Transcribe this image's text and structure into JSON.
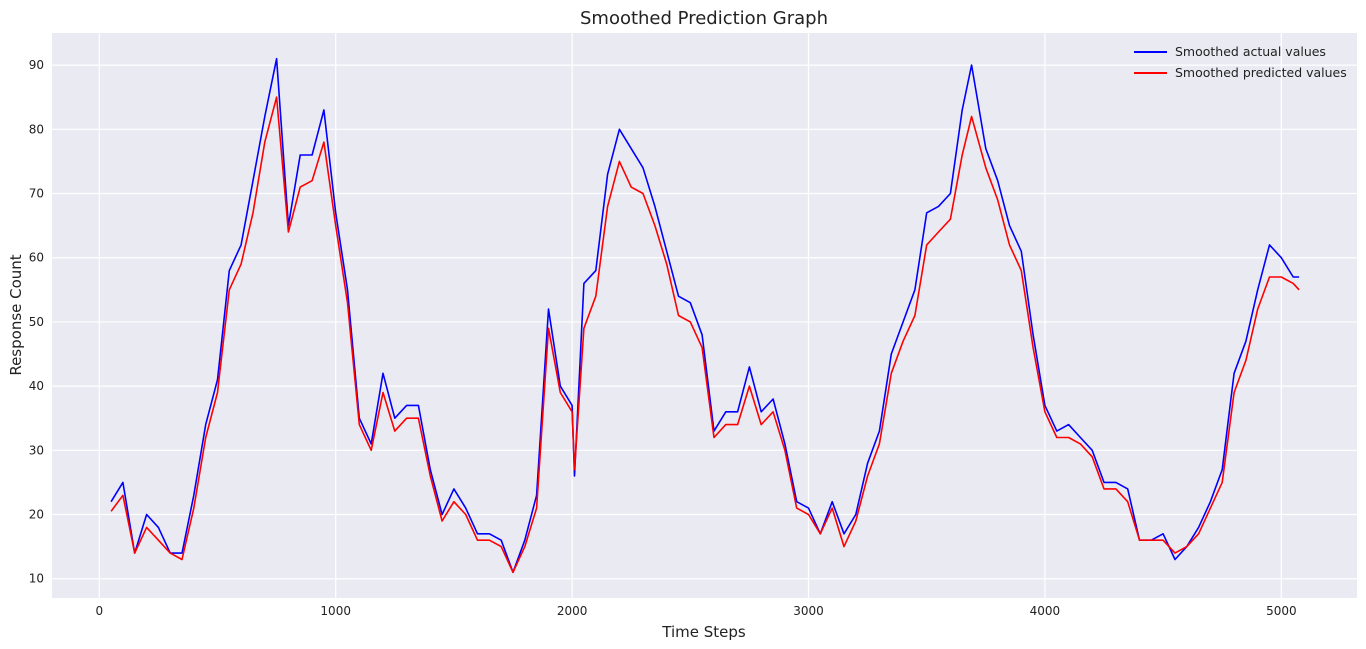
{
  "chart_data": {
    "type": "line",
    "title": "Smoothed Prediction Graph",
    "xlabel": "Time Steps",
    "ylabel": "Response Count",
    "xlim": [
      -200,
      5320
    ],
    "ylim": [
      7,
      95
    ],
    "xticks": [
      0,
      1000,
      2000,
      3000,
      4000,
      5000
    ],
    "yticks": [
      10,
      20,
      30,
      40,
      50,
      60,
      70,
      80,
      90
    ],
    "grid": true,
    "legend_position": "top-right",
    "series": [
      {
        "name": "Smoothed actual values",
        "color": "#0000ff",
        "x": [
          50,
          100,
          150,
          200,
          250,
          300,
          350,
          400,
          450,
          500,
          550,
          600,
          650,
          700,
          750,
          800,
          850,
          900,
          950,
          1000,
          1050,
          1100,
          1150,
          1200,
          1250,
          1300,
          1350,
          1400,
          1450,
          1500,
          1550,
          1600,
          1650,
          1700,
          1750,
          1800,
          1850,
          1900,
          1950,
          2000,
          2010,
          2050,
          2100,
          2150,
          2200,
          2250,
          2300,
          2350,
          2400,
          2450,
          2500,
          2550,
          2600,
          2650,
          2700,
          2750,
          2800,
          2850,
          2900,
          2950,
          3000,
          3050,
          3100,
          3150,
          3200,
          3250,
          3300,
          3350,
          3400,
          3450,
          3500,
          3550,
          3600,
          3650,
          3690,
          3750,
          3800,
          3850,
          3900,
          3950,
          4000,
          4050,
          4100,
          4150,
          4200,
          4250,
          4300,
          4350,
          4400,
          4450,
          4500,
          4550,
          4600,
          4650,
          4700,
          4750,
          4800,
          4850,
          4900,
          4950,
          5000,
          5050,
          5075
        ],
        "values": [
          22,
          25,
          14,
          20,
          18,
          14,
          14,
          23,
          34,
          41,
          58,
          62,
          72,
          82,
          91,
          65,
          76,
          76,
          83,
          67,
          55,
          35,
          31,
          42,
          35,
          37,
          37,
          27,
          20,
          24,
          21,
          17,
          17,
          16,
          11,
          16,
          23,
          52,
          40,
          37,
          26,
          56,
          58,
          73,
          80,
          77,
          74,
          68,
          61,
          54,
          53,
          48,
          33,
          36,
          36,
          43,
          36,
          38,
          31,
          22,
          21,
          17,
          22,
          17,
          20,
          28,
          33,
          45,
          50,
          55,
          67,
          68,
          70,
          83,
          90,
          77,
          72,
          65,
          61,
          48,
          37,
          33,
          34,
          32,
          30,
          25,
          25,
          24,
          16,
          16,
          17,
          13,
          15,
          18,
          22,
          27,
          42,
          47,
          55,
          62,
          60,
          57,
          57
        ]
      },
      {
        "name": "Smoothed predicted values",
        "color": "#ff0000",
        "x": [
          50,
          100,
          150,
          200,
          250,
          300,
          350,
          400,
          450,
          500,
          550,
          600,
          650,
          700,
          750,
          800,
          850,
          900,
          950,
          1000,
          1050,
          1100,
          1150,
          1200,
          1250,
          1300,
          1350,
          1400,
          1450,
          1500,
          1550,
          1600,
          1650,
          1700,
          1750,
          1800,
          1850,
          1900,
          1950,
          2000,
          2010,
          2050,
          2100,
          2150,
          2200,
          2250,
          2300,
          2350,
          2400,
          2450,
          2500,
          2550,
          2600,
          2650,
          2700,
          2750,
          2800,
          2850,
          2900,
          2950,
          3000,
          3050,
          3100,
          3150,
          3200,
          3250,
          3300,
          3350,
          3400,
          3450,
          3500,
          3550,
          3600,
          3650,
          3690,
          3750,
          3800,
          3850,
          3900,
          3950,
          4000,
          4050,
          4100,
          4150,
          4200,
          4250,
          4300,
          4350,
          4400,
          4450,
          4500,
          4550,
          4600,
          4650,
          4700,
          4750,
          4800,
          4850,
          4900,
          4950,
          5000,
          5050,
          5075
        ],
        "values": [
          20.5,
          23,
          14,
          18,
          16,
          14,
          13,
          21,
          32,
          39,
          55,
          59,
          67,
          78,
          85,
          64,
          71,
          72,
          78,
          65,
          53,
          34,
          30,
          39,
          33,
          35,
          35,
          26,
          19,
          22,
          20,
          16,
          16,
          15,
          11,
          15,
          21,
          49,
          39,
          36,
          27,
          49,
          54,
          68,
          75,
          71,
          70,
          65,
          59,
          51,
          50,
          46,
          32,
          34,
          34,
          40,
          34,
          36,
          30,
          21,
          20,
          17,
          21,
          15,
          19,
          26,
          31,
          42,
          47,
          51,
          62,
          64,
          66,
          76,
          82,
          74,
          69,
          62,
          58,
          46,
          36,
          32,
          32,
          31,
          29,
          24,
          24,
          22,
          16,
          16,
          16,
          14,
          15,
          17,
          21,
          25,
          39,
          44,
          52,
          57,
          57,
          56,
          55
        ]
      }
    ]
  }
}
